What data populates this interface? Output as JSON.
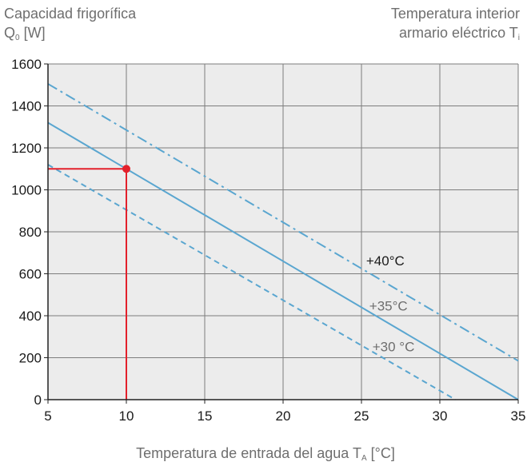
{
  "header": {
    "left_line1": "Capacidad frigorífica",
    "left_line2_main": "Q",
    "left_line2_sub": "0",
    "left_line2_unit": " [W]",
    "right_line1": "Temperatura interior",
    "right_line2_main": "armario eléctrico T",
    "right_line2_sub": "i"
  },
  "footer": {
    "xlabel_main": "Temperatura de entrada del agua T",
    "xlabel_sub": "A",
    "xlabel_unit": " [°C]"
  },
  "chart_data": {
    "type": "line",
    "title": "",
    "xlim": [
      5,
      35
    ],
    "ylim": [
      0,
      1600
    ],
    "xticks": [
      5,
      10,
      15,
      20,
      25,
      30,
      35
    ],
    "yticks": [
      0,
      200,
      400,
      600,
      800,
      1000,
      1200,
      1400,
      1600
    ],
    "grid": true,
    "series": [
      {
        "name": "+40°C",
        "style": "dash-dot",
        "color": "#5aa6d0",
        "x": [
          5,
          35
        ],
        "y": [
          1505,
          185
        ],
        "label_at": [
          25.3,
          640
        ]
      },
      {
        "name": "+35°C",
        "style": "solid",
        "color": "#5aa6d0",
        "x": [
          5,
          35
        ],
        "y": [
          1320,
          0
        ],
        "label_at": [
          25.5,
          425
        ]
      },
      {
        "name": "+30 °C",
        "style": "dashed",
        "color": "#5aa6d0",
        "x": [
          5,
          31
        ],
        "y": [
          1120,
          0
        ],
        "label_at": [
          25.7,
          230
        ]
      }
    ],
    "marker": {
      "x": 10,
      "y": 1100,
      "color": "#e3202b"
    }
  }
}
